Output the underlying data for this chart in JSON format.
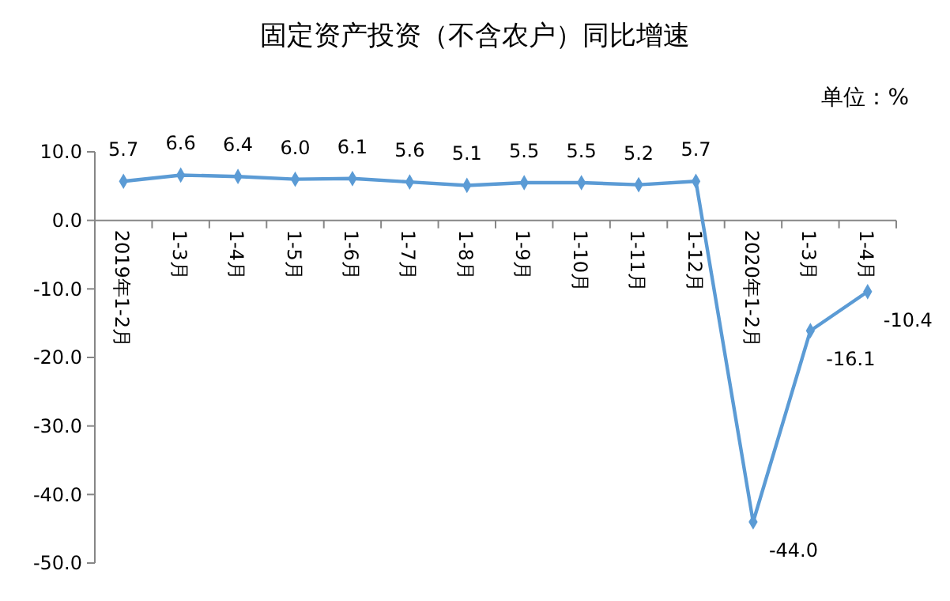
{
  "chart_data": {
    "type": "line",
    "title": "固定资产投资（不含农户）同比增速",
    "annotations": [
      "单位：%"
    ],
    "categories": [
      "2019年1-2月",
      "1-3月",
      "1-4月",
      "1-5月",
      "1-6月",
      "1-7月",
      "1-8月",
      "1-9月",
      "1-10月",
      "1-11月",
      "1-12月",
      "2020年1-2月",
      "1-3月",
      "1-4月"
    ],
    "series": [
      {
        "color": "#5b9bd5",
        "values": [
          5.7,
          6.6,
          6.4,
          6.0,
          6.1,
          5.6,
          5.1,
          5.5,
          5.5,
          5.2,
          5.7,
          -44.0,
          -16.1,
          -10.4
        ],
        "value_labels": [
          "5.7",
          "6.6",
          "6.4",
          "6.0",
          "6.1",
          "5.6",
          "5.1",
          "5.5",
          "5.5",
          "5.2",
          "5.7",
          "-44.0",
          "-16.1",
          "-10.4"
        ]
      }
    ],
    "ylim": [
      -50,
      10
    ],
    "yticks": [
      {
        "value": 10,
        "label": "10.0"
      },
      {
        "value": 0,
        "label": "0.0"
      },
      {
        "value": -10,
        "label": "-10.0"
      },
      {
        "value": -20,
        "label": "-20.0"
      },
      {
        "value": -30,
        "label": "-30.0"
      },
      {
        "value": -40,
        "label": "-40.0"
      },
      {
        "value": -50,
        "label": "-50.0"
      }
    ],
    "marker": "diamond"
  }
}
